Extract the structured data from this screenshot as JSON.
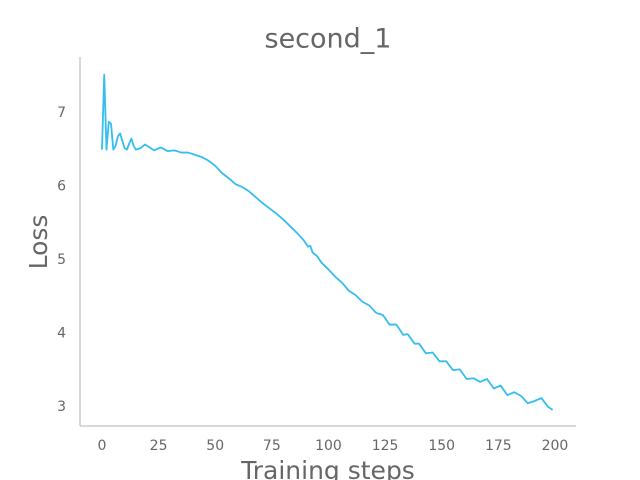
{
  "chart_data": {
    "type": "line",
    "title": "second_1",
    "xlabel": "Training steps",
    "ylabel": "Loss",
    "x": [
      0,
      1,
      2,
      3,
      4,
      5,
      6,
      7,
      8,
      9,
      10,
      11,
      12,
      13,
      14,
      15,
      17,
      19,
      21,
      23,
      26,
      29,
      32,
      35,
      38,
      41,
      44,
      47,
      50,
      53,
      56,
      59,
      62,
      65,
      68,
      71,
      74,
      77,
      80,
      83,
      86,
      89,
      91,
      92,
      93,
      95,
      97,
      100,
      103,
      106,
      109,
      112,
      115,
      118,
      121,
      124,
      127,
      130,
      133,
      135,
      138,
      140,
      143,
      146,
      149,
      152,
      155,
      158,
      161,
      164,
      167,
      170,
      173,
      176,
      179,
      182,
      185,
      188,
      191,
      194,
      197,
      199
    ],
    "series": [
      {
        "name": "Loss",
        "color": "#35bdf0",
        "values": [
          6.5,
          7.52,
          6.5,
          6.88,
          6.85,
          6.5,
          6.55,
          6.68,
          6.72,
          6.62,
          6.52,
          6.5,
          6.58,
          6.65,
          6.55,
          6.5,
          6.52,
          6.57,
          6.53,
          6.49,
          6.53,
          6.48,
          6.49,
          6.46,
          6.46,
          6.43,
          6.4,
          6.35,
          6.28,
          6.18,
          6.11,
          6.03,
          5.99,
          5.93,
          5.85,
          5.77,
          5.7,
          5.63,
          5.55,
          5.46,
          5.37,
          5.27,
          5.18,
          5.19,
          5.1,
          5.05,
          4.96,
          4.87,
          4.77,
          4.69,
          4.58,
          4.52,
          4.43,
          4.38,
          4.28,
          4.25,
          4.12,
          4.12,
          3.98,
          3.99,
          3.86,
          3.86,
          3.73,
          3.74,
          3.62,
          3.62,
          3.5,
          3.51,
          3.38,
          3.39,
          3.34,
          3.38,
          3.25,
          3.29,
          3.16,
          3.2,
          3.15,
          3.05,
          3.08,
          3.12,
          3.0,
          2.96
        ]
      }
    ],
    "xlim": [
      -9.7,
      209.3
    ],
    "ylim": [
      2.74,
      7.76
    ],
    "xticks": [
      0,
      25,
      50,
      75,
      100,
      125,
      150,
      175,
      200
    ],
    "yticks": [
      3,
      4,
      5,
      6,
      7
    ],
    "grid": false
  }
}
